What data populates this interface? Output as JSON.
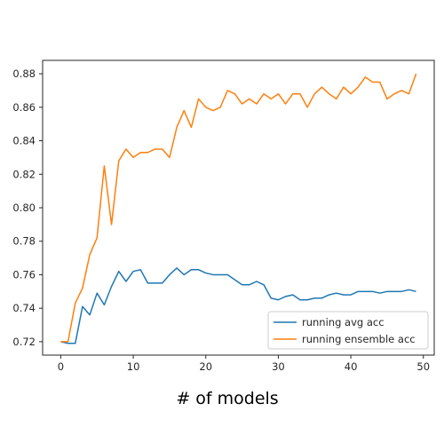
{
  "chart_data": {
    "type": "line",
    "title": "",
    "xlabel": "# of models",
    "ylabel": "",
    "xlim": [
      -2.5,
      51.5
    ],
    "ylim": [
      0.712,
      0.888
    ],
    "xticks": [
      0,
      10,
      20,
      30,
      40,
      50
    ],
    "yticks": [
      0.72,
      0.74,
      0.76,
      0.78,
      0.8,
      0.82,
      0.84,
      0.86,
      0.88
    ],
    "xtick_labels": [
      "0",
      "10",
      "20",
      "30",
      "40",
      "50"
    ],
    "ytick_labels": [
      "0.72",
      "0.74",
      "0.76",
      "0.78",
      "0.80",
      "0.82",
      "0.84",
      "0.86",
      "0.88"
    ],
    "grid": false,
    "legend_position": "lower-right",
    "x": [
      0,
      1,
      2,
      3,
      4,
      5,
      6,
      7,
      8,
      9,
      10,
      11,
      12,
      13,
      14,
      15,
      16,
      17,
      18,
      19,
      20,
      21,
      22,
      23,
      24,
      25,
      26,
      27,
      28,
      29,
      30,
      31,
      32,
      33,
      34,
      35,
      36,
      37,
      38,
      39,
      40,
      41,
      42,
      43,
      44,
      45,
      46,
      47,
      48,
      49
    ],
    "series": [
      {
        "name": "running avg acc",
        "color": "#1f77b4",
        "values": [
          0.72,
          0.719,
          0.719,
          0.741,
          0.736,
          0.749,
          0.742,
          0.753,
          0.762,
          0.756,
          0.762,
          0.763,
          0.755,
          0.755,
          0.755,
          0.76,
          0.764,
          0.76,
          0.763,
          0.763,
          0.761,
          0.76,
          0.76,
          0.76,
          0.757,
          0.754,
          0.754,
          0.756,
          0.754,
          0.746,
          0.745,
          0.747,
          0.748,
          0.745,
          0.745,
          0.746,
          0.746,
          0.748,
          0.749,
          0.748,
          0.748,
          0.75,
          0.75,
          0.75,
          0.749,
          0.75,
          0.75,
          0.75,
          0.751,
          0.75
        ]
      },
      {
        "name": "running ensemble acc",
        "color": "#ff7f0e",
        "values": [
          0.72,
          0.72,
          0.743,
          0.752,
          0.772,
          0.782,
          0.825,
          0.79,
          0.828,
          0.835,
          0.83,
          0.833,
          0.833,
          0.835,
          0.835,
          0.83,
          0.848,
          0.858,
          0.848,
          0.865,
          0.86,
          0.858,
          0.86,
          0.87,
          0.868,
          0.862,
          0.865,
          0.862,
          0.868,
          0.865,
          0.868,
          0.862,
          0.868,
          0.868,
          0.86,
          0.868,
          0.872,
          0.868,
          0.865,
          0.872,
          0.868,
          0.872,
          0.878,
          0.875,
          0.875,
          0.865,
          0.868,
          0.87,
          0.868,
          0.88
        ]
      }
    ]
  }
}
